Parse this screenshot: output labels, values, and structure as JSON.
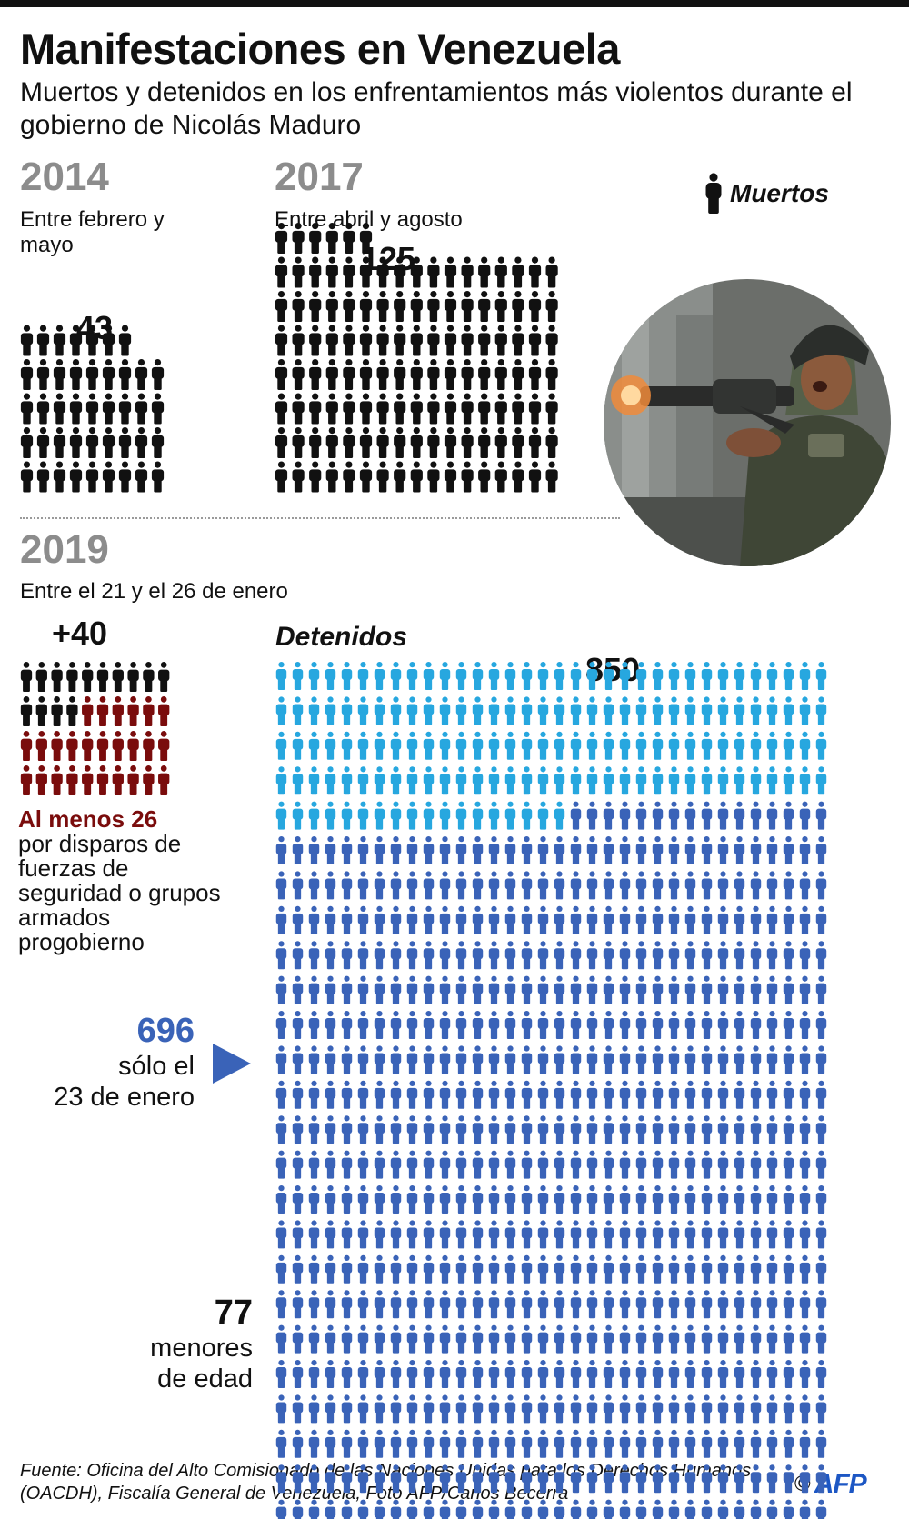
{
  "header": {
    "title": "Manifestaciones en Venezuela",
    "subtitle": "Muertos y detenidos en los enfrentamientos más violentos durante el gobierno de Nicolás Maduro"
  },
  "legend": {
    "label": "Muertos",
    "icon": "person-icon"
  },
  "periods": {
    "p2014": {
      "year": "2014",
      "range": "Entre febrero y mayo"
    },
    "p2017": {
      "year": "2017",
      "range": "Entre abril y agosto"
    },
    "p2019": {
      "year": "2019",
      "range": "Entre el 21 y el 26 de enero"
    }
  },
  "chart_data": [
    {
      "type": "pictogram",
      "title": "2014",
      "subtitle": "Entre febrero y mayo",
      "series": [
        {
          "name": "Muertos",
          "value": 43,
          "label": "43"
        }
      ]
    },
    {
      "type": "pictogram",
      "title": "2017",
      "subtitle": "Entre abril y agosto",
      "series": [
        {
          "name": "Muertos",
          "value": 125,
          "label": "125"
        }
      ]
    },
    {
      "type": "pictogram",
      "title": "2019",
      "subtitle": "Entre el 21 y el 26 de enero",
      "series": [
        {
          "name": "Muertos",
          "value": 40,
          "label": "+40"
        },
        {
          "value": 26,
          "label": "Al menos 26",
          "description": "por disparos de fuerzas de seguridad o grupos armados progobierno"
        }
      ]
    },
    {
      "type": "pictogram",
      "title": "Detenidos",
      "series": [
        {
          "name": "Detenidos",
          "value": 850,
          "label": "850"
        },
        {
          "value": 696,
          "label": "696",
          "description": "sólo el 23 de enero"
        },
        {
          "value": 77,
          "label": "77",
          "description": "menores de edad"
        }
      ]
    }
  ],
  "labels": {
    "d2014": "43",
    "d2017": "125",
    "d2019": "+40",
    "detained_title": "Detenidos",
    "detained": "850",
    "shot_title": "Al menos 26",
    "shot_desc": "por disparos de fuerzas de seguridad o grupos armados progobierno",
    "jan23_num": "696",
    "jan23_l1": "sólo el",
    "jan23_l2": "23 de enero",
    "minors_num": "77",
    "minors_l1": "menores",
    "minors_l2": "de edad"
  },
  "colors": {
    "dead": "#111111",
    "shot": "#7a0c0c",
    "detained": "#27a7df",
    "jan23": "#3a63b8",
    "year": "#8c8c8c",
    "afp": "#1d57c4"
  },
  "footer": {
    "source": "Fuente: Oficina del Alto Comisionado de las Naciones Unidas para los Derechos Humanos (OACDH), Fiscalía General de Venezuela, Foto AFP/Carlos Becerra",
    "copyright": "©",
    "agency": "AFP"
  },
  "photo": {
    "icon": "soldier-photo"
  }
}
